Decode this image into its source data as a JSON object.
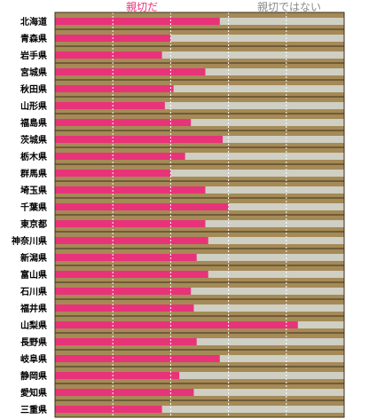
{
  "chart_data": {
    "type": "bar",
    "stacked": true,
    "orientation": "horizontal",
    "categories": [
      "北海道",
      "青森県",
      "岩手県",
      "宮城県",
      "秋田県",
      "山形県",
      "福島県",
      "茨城県",
      "栃木県",
      "群馬県",
      "埼玉県",
      "千葉県",
      "東京都",
      "神奈川県",
      "新潟県",
      "富山県",
      "石川県",
      "福井県",
      "山梨県",
      "長野県",
      "岐阜県",
      "静岡県",
      "愛知県",
      "三重県"
    ],
    "series": [
      {
        "name": "親切だ",
        "color": "#e8337a",
        "values": [
          57,
          40,
          37,
          52,
          41,
          38,
          47,
          58,
          45,
          40,
          52,
          60,
          52,
          53,
          49,
          53,
          47,
          48,
          84,
          49,
          57,
          43,
          48,
          37
        ]
      },
      {
        "name": "親切ではない",
        "color": "#cfcfc4",
        "values": [
          43,
          60,
          63,
          48,
          59,
          62,
          53,
          42,
          55,
          60,
          48,
          40,
          48,
          47,
          51,
          47,
          53,
          52,
          16,
          51,
          43,
          57,
          52,
          63
        ]
      }
    ],
    "xlim": [
      0,
      100
    ],
    "grid": true,
    "legend": "top",
    "band_color": "#a58a57"
  }
}
